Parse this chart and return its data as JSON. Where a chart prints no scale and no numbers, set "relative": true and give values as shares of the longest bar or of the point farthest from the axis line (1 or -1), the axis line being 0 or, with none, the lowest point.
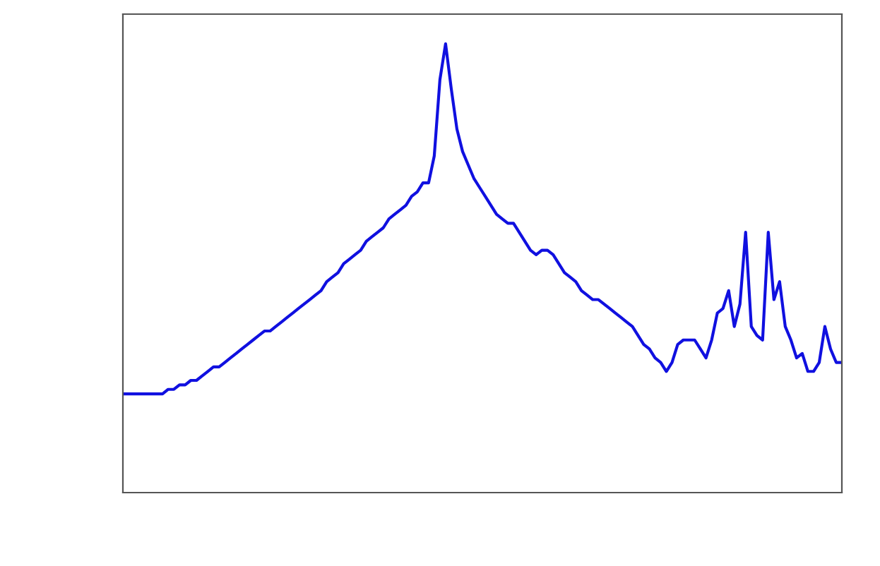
{
  "chart_data": {
    "type": "line",
    "relative": true,
    "tick_labels": false,
    "categories": [
      null,
      null,
      null,
      null,
      null,
      null,
      null,
      null,
      null,
      null,
      null,
      null,
      null,
      null,
      null,
      null,
      null,
      null,
      null,
      null,
      null,
      null,
      null,
      null,
      null,
      null,
      null,
      null,
      null,
      null,
      null,
      null,
      null,
      null,
      null,
      null,
      null,
      null,
      null,
      null,
      null,
      null,
      null,
      null,
      null,
      null,
      null,
      null,
      null,
      null,
      null,
      null,
      null,
      null,
      null,
      null,
      null,
      null,
      null,
      null,
      null,
      null,
      null,
      null,
      null,
      null,
      null,
      null,
      null,
      null,
      null,
      null,
      null,
      null,
      null,
      null,
      null,
      null,
      null,
      null,
      null,
      null,
      null,
      null,
      null,
      null,
      null,
      null,
      null,
      null,
      null,
      null,
      null,
      null,
      null,
      null,
      null,
      null,
      null,
      null,
      null,
      null,
      null,
      null,
      null,
      null,
      null,
      null,
      null,
      null,
      null,
      null,
      null,
      null,
      null,
      null,
      null,
      null,
      null,
      null,
      null,
      null,
      null,
      null,
      null,
      null,
      null,
      null
    ],
    "series": [
      {
        "color": "#1010e0",
        "values": [
          0.22,
          0.22,
          0.22,
          0.22,
          0.22,
          0.22,
          0.22,
          0.22,
          0.23,
          0.23,
          0.24,
          0.24,
          0.25,
          0.25,
          0.26,
          0.27,
          0.28,
          0.28,
          0.29,
          0.3,
          0.31,
          0.32,
          0.33,
          0.34,
          0.35,
          0.36,
          0.36,
          0.37,
          0.38,
          0.39,
          0.4,
          0.41,
          0.42,
          0.43,
          0.44,
          0.45,
          0.47,
          0.48,
          0.49,
          0.51,
          0.52,
          0.53,
          0.54,
          0.56,
          0.57,
          0.58,
          0.59,
          0.61,
          0.62,
          0.63,
          0.64,
          0.66,
          0.67,
          0.69,
          0.69,
          0.75,
          0.92,
          1,
          0.9,
          0.81,
          0.76,
          0.73,
          0.7,
          0.68,
          0.66,
          0.64,
          0.62,
          0.61,
          0.6,
          0.6,
          0.58,
          0.56,
          0.54,
          0.53,
          0.54,
          0.54,
          0.53,
          0.51,
          0.49,
          0.48,
          0.47,
          0.45,
          0.44,
          0.43,
          0.43,
          0.42,
          0.41,
          0.4,
          0.39,
          0.38,
          0.37,
          0.35,
          0.33,
          0.32,
          0.3,
          0.29,
          0.27,
          0.29,
          0.33,
          0.34,
          0.34,
          0.34,
          0.32,
          0.3,
          0.34,
          0.4,
          0.41,
          0.45,
          0.37,
          0.42,
          0.58,
          0.37,
          0.35,
          0.34,
          0.58,
          0.43,
          0.47,
          0.37,
          0.34,
          0.3,
          0.31,
          0.27,
          0.27,
          0.29,
          0.37,
          0.32,
          0.29,
          0.29
        ]
      }
    ]
  }
}
